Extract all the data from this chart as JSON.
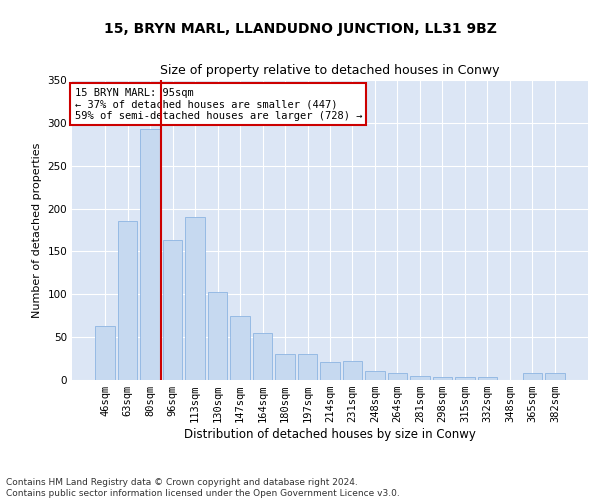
{
  "title": "15, BRYN MARL, LLANDUDNO JUNCTION, LL31 9BZ",
  "subtitle": "Size of property relative to detached houses in Conwy",
  "xlabel": "Distribution of detached houses by size in Conwy",
  "ylabel": "Number of detached properties",
  "categories": [
    "46sqm",
    "63sqm",
    "80sqm",
    "96sqm",
    "113sqm",
    "130sqm",
    "147sqm",
    "164sqm",
    "180sqm",
    "197sqm",
    "214sqm",
    "231sqm",
    "248sqm",
    "264sqm",
    "281sqm",
    "298sqm",
    "315sqm",
    "332sqm",
    "348sqm",
    "365sqm",
    "382sqm"
  ],
  "values": [
    63,
    185,
    293,
    163,
    190,
    103,
    75,
    55,
    30,
    30,
    21,
    22,
    10,
    8,
    5,
    4,
    3,
    4,
    0,
    8,
    8
  ],
  "bar_color": "#c6d9f0",
  "bar_edge_color": "#8db4e2",
  "vline_x": 2.5,
  "vline_color": "#cc0000",
  "annotation_text": "15 BRYN MARL: 95sqm\n← 37% of detached houses are smaller (447)\n59% of semi-detached houses are larger (728) →",
  "annotation_box_color": "#ffffff",
  "annotation_box_edge": "#cc0000",
  "ylim": [
    0,
    350
  ],
  "yticks": [
    0,
    50,
    100,
    150,
    200,
    250,
    300,
    350
  ],
  "background_color": "#dce6f5",
  "footer": "Contains HM Land Registry data © Crown copyright and database right 2024.\nContains public sector information licensed under the Open Government Licence v3.0.",
  "title_fontsize": 10,
  "subtitle_fontsize": 9,
  "xlabel_fontsize": 8.5,
  "ylabel_fontsize": 8,
  "tick_fontsize": 7.5,
  "annot_fontsize": 7.5,
  "footer_fontsize": 6.5
}
